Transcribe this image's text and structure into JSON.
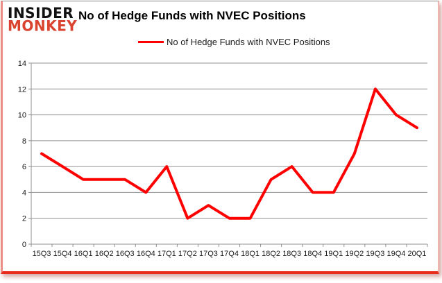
{
  "logo": {
    "line1": "INSIDER",
    "line2": "MONKEY"
  },
  "header": {
    "title": "No of Hedge Funds with NVEC Positions"
  },
  "legend": {
    "label": "No of Hedge Funds with NVEC Positions"
  },
  "colors": {
    "line": "#fe0000",
    "grid": "#909090",
    "axis_text": "#1a1a1a",
    "logo_black": "#111111",
    "logo_red": "#d9432f",
    "border_red": "#e92d1d",
    "border_top_gray": "#8c8c8c",
    "background": "#ffffff"
  },
  "chart_data": {
    "type": "line",
    "title": "No of Hedge Funds with NVEC Positions",
    "categories": [
      "15Q3",
      "15Q4",
      "16Q1",
      "16Q2",
      "16Q3",
      "16Q4",
      "17Q1",
      "17Q2",
      "17Q3",
      "17Q4",
      "18Q1",
      "18Q2",
      "18Q3",
      "18Q4",
      "19Q1",
      "19Q2",
      "19Q3",
      "19Q4",
      "20Q1"
    ],
    "series": [
      {
        "name": "No of Hedge Funds with NVEC Positions",
        "values": [
          7,
          6,
          5,
          5,
          5,
          4,
          6,
          2,
          3,
          2,
          2,
          5,
          6,
          4,
          4,
          7,
          12,
          10,
          9
        ],
        "color": "#fe0000"
      }
    ],
    "xlabel": "",
    "ylabel": "",
    "ylim": [
      0,
      14
    ],
    "ytick_step": 2,
    "yticks": [
      0,
      2,
      4,
      6,
      8,
      10,
      12,
      14
    ],
    "grid": true,
    "legend_position": "top"
  }
}
